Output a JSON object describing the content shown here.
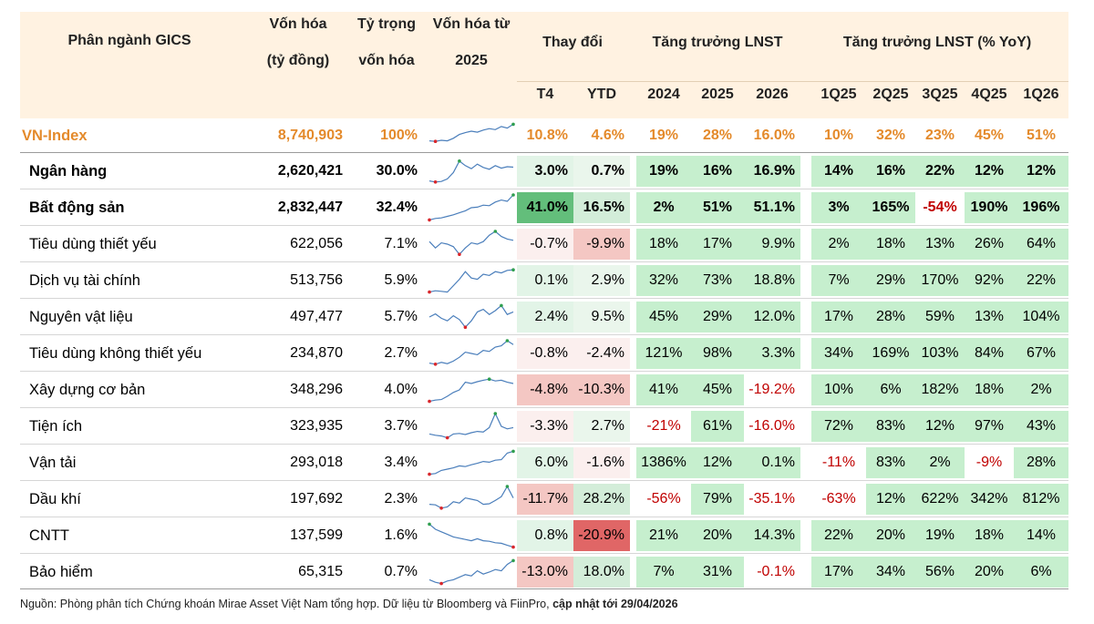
{
  "header": {
    "sector": "Phân ngành GICS",
    "mcap_line1": "Vốn hóa",
    "mcap_line2": "(tỷ đồng)",
    "weight_line1": "Tỷ trọng",
    "weight_line2": "vốn hóa",
    "since_line1": "Vốn hóa từ",
    "since_line2": "2025",
    "change": "Thay đổi",
    "growth": "Tăng trưởng LNST",
    "growth_yoy": "Tăng trưởng LNST (% YoY)",
    "sub_t4": "T4",
    "sub_ytd": "YTD",
    "sub_2024": "2024",
    "sub_2025": "2025",
    "sub_2026": "2026",
    "sub_1q25": "1Q25",
    "sub_2q25": "2Q25",
    "sub_3q25": "3Q25",
    "sub_4q25": "4Q25",
    "sub_1q26": "1Q26"
  },
  "colors": {
    "header_bg": "#FFF2E1",
    "index_orange": "#E48A2B",
    "green_light": "#C6EFCE",
    "green_strong": "#63BE7B",
    "red_light": "#F4C7C3",
    "red_strong": "#E06666",
    "negative_text": "#C00000"
  },
  "rows": [
    {
      "name": "VN-Index",
      "mcap": "8,740,903",
      "weight": "100%",
      "t4": "10.8%",
      "ytd": "4.6%",
      "y2024": "19%",
      "y2025": "28%",
      "y2026": "16.0%",
      "q1_25": "10%",
      "q2_25": "32%",
      "q3_25": "23%",
      "q4_25": "45%",
      "q1_26": "51%"
    },
    {
      "name": "Ngân hàng",
      "mcap": "2,620,421",
      "weight": "30.0%",
      "t4": "3.0%",
      "ytd": "0.7%",
      "y2024": "19%",
      "y2025": "16%",
      "y2026": "16.9%",
      "q1_25": "14%",
      "q2_25": "16%",
      "q3_25": "22%",
      "q4_25": "12%",
      "q1_26": "12%"
    },
    {
      "name": "Bất động sản",
      "mcap": "2,832,447",
      "weight": "32.4%",
      "t4": "41.0%",
      "ytd": "16.5%",
      "y2024": "2%",
      "y2025": "51%",
      "y2026": "51.1%",
      "q1_25": "3%",
      "q2_25": "165%",
      "q3_25": "-54%",
      "q4_25": "190%",
      "q1_26": "196%"
    },
    {
      "name": "Tiêu dùng thiết yếu",
      "mcap": "622,056",
      "weight": "7.1%",
      "t4": "-0.7%",
      "ytd": "-9.9%",
      "y2024": "18%",
      "y2025": "17%",
      "y2026": "9.9%",
      "q1_25": "2%",
      "q2_25": "18%",
      "q3_25": "13%",
      "q4_25": "26%",
      "q1_26": "64%"
    },
    {
      "name": "Dịch vụ tài chính",
      "mcap": "513,756",
      "weight": "5.9%",
      "t4": "0.1%",
      "ytd": "2.9%",
      "y2024": "32%",
      "y2025": "73%",
      "y2026": "18.8%",
      "q1_25": "7%",
      "q2_25": "29%",
      "q3_25": "170%",
      "q4_25": "92%",
      "q1_26": "22%"
    },
    {
      "name": "Nguyên vật liệu",
      "mcap": "497,477",
      "weight": "5.7%",
      "t4": "2.4%",
      "ytd": "9.5%",
      "y2024": "45%",
      "y2025": "29%",
      "y2026": "12.0%",
      "q1_25": "17%",
      "q2_25": "28%",
      "q3_25": "59%",
      "q4_25": "13%",
      "q1_26": "104%"
    },
    {
      "name": "Tiêu dùng không thiết yếu",
      "mcap": "234,870",
      "weight": "2.7%",
      "t4": "-0.8%",
      "ytd": "-2.4%",
      "y2024": "121%",
      "y2025": "98%",
      "y2026": "3.3%",
      "q1_25": "34%",
      "q2_25": "169%",
      "q3_25": "103%",
      "q4_25": "84%",
      "q1_26": "67%"
    },
    {
      "name": "Xây dựng cơ bản",
      "mcap": "348,296",
      "weight": "4.0%",
      "t4": "-4.8%",
      "ytd": "-10.3%",
      "y2024": "41%",
      "y2025": "45%",
      "y2026": "-19.2%",
      "q1_25": "10%",
      "q2_25": "6%",
      "q3_25": "182%",
      "q4_25": "18%",
      "q1_26": "2%"
    },
    {
      "name": "Tiện ích",
      "mcap": "323,935",
      "weight": "3.7%",
      "t4": "-3.3%",
      "ytd": "2.7%",
      "y2024": "-21%",
      "y2025": "61%",
      "y2026": "-16.0%",
      "q1_25": "72%",
      "q2_25": "83%",
      "q3_25": "12%",
      "q4_25": "97%",
      "q1_26": "43%"
    },
    {
      "name": "Vận tải",
      "mcap": "293,018",
      "weight": "3.4%",
      "t4": "6.0%",
      "ytd": "-1.6%",
      "y2024": "1386%",
      "y2025": "12%",
      "y2026": "0.1%",
      "q1_25": "-11%",
      "q2_25": "83%",
      "q3_25": "2%",
      "q4_25": "-9%",
      "q1_26": "28%"
    },
    {
      "name": "Dầu khí",
      "mcap": "197,692",
      "weight": "2.3%",
      "t4": "-11.7%",
      "ytd": "28.2%",
      "y2024": "-56%",
      "y2025": "79%",
      "y2026": "-35.1%",
      "q1_25": "-63%",
      "q2_25": "12%",
      "q3_25": "622%",
      "q4_25": "342%",
      "q1_26": "812%"
    },
    {
      "name": "CNTT",
      "mcap": "137,599",
      "weight": "1.6%",
      "t4": "0.8%",
      "ytd": "-20.9%",
      "y2024": "21%",
      "y2025": "20%",
      "y2026": "14.3%",
      "q1_25": "22%",
      "q2_25": "20%",
      "q3_25": "19%",
      "q4_25": "18%",
      "q1_26": "14%"
    },
    {
      "name": "Bảo hiểm",
      "mcap": "65,315",
      "weight": "0.7%",
      "t4": "-13.0%",
      "ytd": "18.0%",
      "y2024": "7%",
      "y2025": "31%",
      "y2026": "-0.1%",
      "q1_25": "17%",
      "q2_25": "34%",
      "q3_25": "56%",
      "q4_25": "20%",
      "q1_26": "6%"
    }
  ],
  "sparklines": [
    [
      0.3,
      0.28,
      0.32,
      0.3,
      0.4,
      0.55,
      0.62,
      0.68,
      0.64,
      0.72,
      0.78,
      0.74,
      0.86,
      0.8,
      0.95
    ],
    [
      0.12,
      0.08,
      0.1,
      0.2,
      0.45,
      0.9,
      0.72,
      0.6,
      0.78,
      0.65,
      0.58,
      0.72,
      0.62,
      0.68,
      0.66
    ],
    [
      0.02,
      0.08,
      0.1,
      0.16,
      0.22,
      0.3,
      0.38,
      0.5,
      0.52,
      0.6,
      0.58,
      0.72,
      0.8,
      0.75,
      1.0
    ],
    [
      0.6,
      0.35,
      0.55,
      0.5,
      0.4,
      0.1,
      0.35,
      0.55,
      0.5,
      0.6,
      0.85,
      1.0,
      0.8,
      0.7,
      0.65
    ],
    [
      0.05,
      0.1,
      0.08,
      0.05,
      0.3,
      0.55,
      0.85,
      0.6,
      0.55,
      0.75,
      0.7,
      0.85,
      0.8,
      0.9,
      0.92
    ],
    [
      0.5,
      0.62,
      0.45,
      0.35,
      0.55,
      0.4,
      0.1,
      0.35,
      0.7,
      0.8,
      0.6,
      0.75,
      0.95,
      0.6,
      0.7
    ],
    [
      0.12,
      0.08,
      0.15,
      0.1,
      0.2,
      0.35,
      0.55,
      0.5,
      0.45,
      0.62,
      0.58,
      0.75,
      0.8,
      1.0,
      0.85
    ],
    [
      0.05,
      0.1,
      0.12,
      0.25,
      0.4,
      0.5,
      0.8,
      0.75,
      0.82,
      0.88,
      0.92,
      0.85,
      0.88,
      0.8,
      0.75
    ],
    [
      0.2,
      0.15,
      0.12,
      0.05,
      0.2,
      0.22,
      0.18,
      0.25,
      0.3,
      0.28,
      0.45,
      1.0,
      0.5,
      0.4,
      0.45
    ],
    [
      0.05,
      0.08,
      0.2,
      0.25,
      0.3,
      0.38,
      0.35,
      0.42,
      0.48,
      0.55,
      0.52,
      0.6,
      0.62,
      0.88,
      0.95
    ],
    [
      0.3,
      0.28,
      0.15,
      0.2,
      0.4,
      0.35,
      0.55,
      0.5,
      0.45,
      0.3,
      0.32,
      0.45,
      0.6,
      1.0,
      0.55
    ],
    [
      0.95,
      0.75,
      0.65,
      0.55,
      0.45,
      0.4,
      0.35,
      0.3,
      0.38,
      0.3,
      0.28,
      0.22,
      0.2,
      0.12,
      0.05
    ],
    [
      0.2,
      0.1,
      0.05,
      0.15,
      0.2,
      0.3,
      0.4,
      0.35,
      0.55,
      0.42,
      0.5,
      0.6,
      0.55,
      0.8,
      0.95
    ]
  ],
  "source_prefix": "Nguồn: Phòng phân tích Chứng khoán Mirae Asset Việt Nam tổng hợp. Dữ liệu từ Bloomberg và FiinPro,",
  "source_bold": "cập nhật tới 29/04/2026"
}
